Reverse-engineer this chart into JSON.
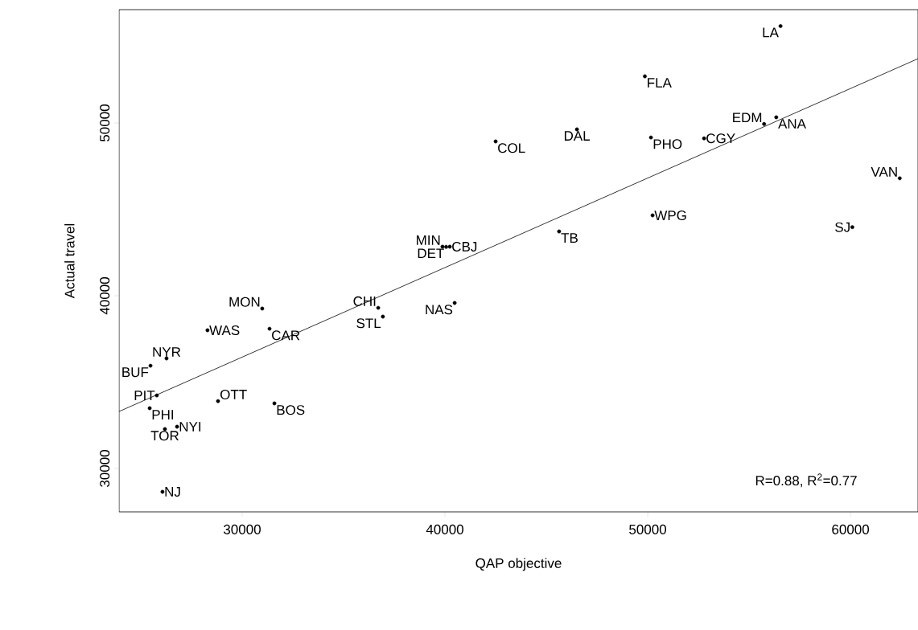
{
  "chart_data": {
    "type": "scatter",
    "xlabel": "QAP objective",
    "ylabel": "Actual travel",
    "xlim": [
      23930,
      63330
    ],
    "ylim": [
      27490,
      56560
    ],
    "xticks": [
      30000,
      40000,
      50000,
      60000
    ],
    "yticks": [
      30000,
      40000,
      50000
    ],
    "annotations": [
      "R=0.88,  R$^{2}$=0.77"
    ],
    "series": [
      {
        "marker": "circle",
        "color": "#000000",
        "x": [
          30990,
          28290,
          31350,
          36710,
          36940,
          26270,
          25480,
          25790,
          25440,
          28810,
          31590,
          26190,
          26790,
          26070,
          42500,
          46510,
          50160,
          39880,
          40060,
          40240,
          45630,
          50240,
          40480,
          56550,
          49860,
          55740,
          56340,
          52780,
          62430,
          60090
        ],
        "values": [
          39260,
          38000,
          38090,
          39300,
          38790,
          36370,
          35950,
          34230,
          33490,
          33900,
          33770,
          32280,
          32420,
          28650,
          48930,
          49630,
          49160,
          42840,
          42830,
          42840,
          43720,
          44650,
          39580,
          55610,
          52700,
          49940,
          50330,
          49110,
          46800,
          43970
        ],
        "value_labels": [
          "MON",
          "WAS",
          "CAR",
          "CHI",
          "STL",
          "NYR",
          "BUF",
          "PIT",
          "PHI",
          "OTT",
          "BOS",
          "TOR",
          "NYI",
          "NJ",
          "COL",
          "DAL",
          "PHO",
          "MIN",
          "DET",
          "CBJ",
          "TB",
          "WPG",
          "NAS",
          "LA",
          "FLA",
          "EDM",
          "ANA",
          "CGY",
          "VAN",
          "SJ"
        ]
      },
      {
        "type": "line",
        "marker": "none",
        "color": "#000000",
        "x": [
          23930,
          63330
        ],
        "values": [
          33300,
          53720
        ]
      }
    ]
  }
}
